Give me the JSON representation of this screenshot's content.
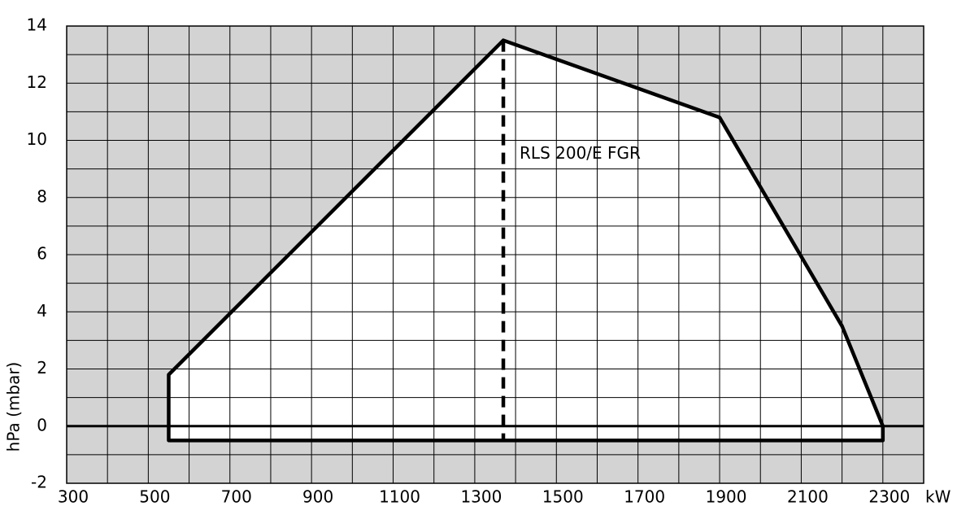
{
  "chart_data": {
    "type": "line",
    "x_label": "kW",
    "y_label": "hPa (mbar)",
    "xlim": [
      300,
      2400
    ],
    "ylim": [
      -2,
      14
    ],
    "xticks": [
      300,
      500,
      700,
      900,
      1100,
      1300,
      1500,
      1700,
      1900,
      2100,
      2300
    ],
    "yticks": [
      -2,
      0,
      2,
      4,
      6,
      8,
      10,
      12,
      14
    ],
    "x_minor_ticks": [
      400,
      600,
      800,
      1000,
      1200,
      1400,
      1600,
      1800,
      2000,
      2200,
      2400
    ],
    "y_minor_ticks": [
      -1,
      1,
      3,
      5,
      7,
      9,
      11,
      13
    ],
    "grid": true,
    "series": [
      {
        "color": "#000000",
        "x": [
          550,
          1370,
          1900,
          2200,
          2300,
          2300,
          550
        ],
        "values": [
          1.8,
          13.5,
          10.8,
          3.5,
          0,
          -0.5,
          -0.5
        ]
      }
    ],
    "annotation": {
      "text": "RLS 200/E FGR",
      "x": 1370
    }
  }
}
